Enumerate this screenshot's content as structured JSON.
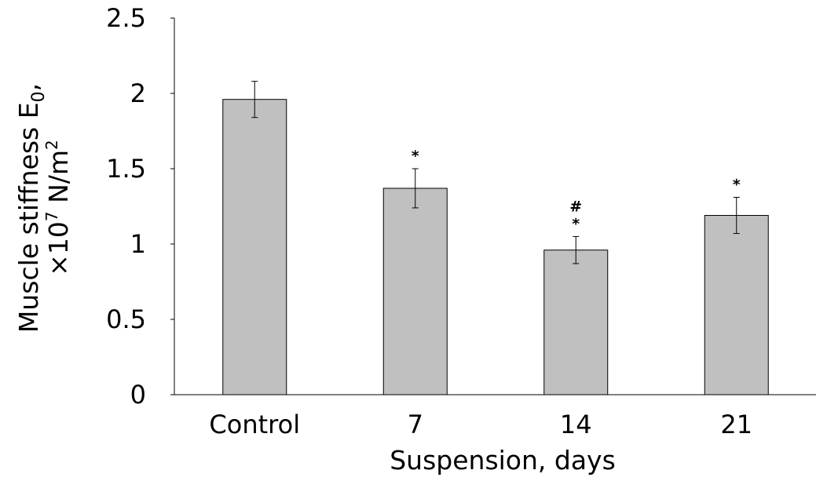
{
  "chart_data": {
    "type": "bar",
    "categories": [
      "Control",
      "7",
      "14",
      "21"
    ],
    "values": [
      1.96,
      1.37,
      0.96,
      1.19
    ],
    "errors": [
      0.12,
      0.13,
      0.09,
      0.12
    ],
    "significance": [
      [],
      [
        "*"
      ],
      [
        "*",
        "#"
      ],
      [
        "*"
      ]
    ],
    "xlabel": "Suspension, days",
    "ylabel": {
      "line1": "Muscle stiffness E",
      "line1_subscript": "0",
      "line1_suffix": ",",
      "line2": "×10",
      "line2_superscript": "7",
      "line2_suffix": " N/m",
      "line2_superscript2": "2"
    },
    "ylim": [
      0,
      2.5
    ],
    "yticks": [
      0,
      0.5,
      1,
      1.5,
      2,
      2.5
    ],
    "ytick_labels": [
      "0",
      "0.5",
      "1",
      "1.5",
      "2",
      "2.5"
    ],
    "grid": false,
    "legend": "none",
    "bar_color": "#c0c0c0",
    "bar_edge_color": "#000000"
  }
}
